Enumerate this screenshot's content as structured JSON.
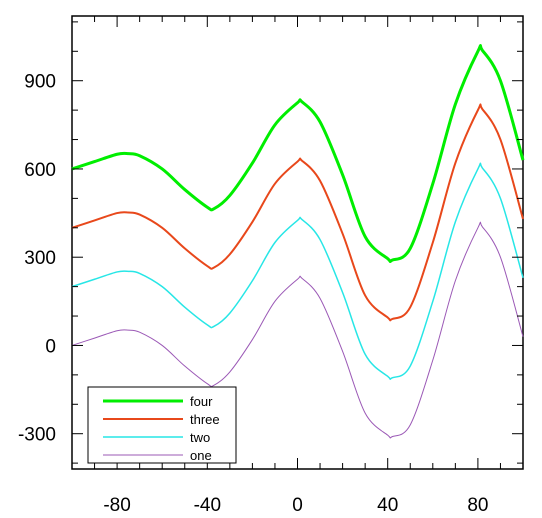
{
  "chart_data": {
    "type": "line",
    "title": "",
    "xlabel": "",
    "ylabel": "",
    "xlim": [
      -100,
      100
    ],
    "ylim": [
      -420,
      1120
    ],
    "xticks": [
      -80,
      -40,
      0,
      40,
      80
    ],
    "xtick_labels": [
      "-80",
      "-40",
      "0",
      "40",
      "80"
    ],
    "yticks": [
      -300,
      0,
      300,
      600,
      900
    ],
    "ytick_labels": [
      "-300",
      "0",
      "300",
      "600",
      "900"
    ],
    "x": [
      -100,
      -90,
      -80,
      -75,
      -70,
      -60,
      -50,
      -40,
      -37,
      -30,
      -20,
      -10,
      0,
      2,
      10,
      20,
      30,
      40,
      42,
      50,
      60,
      70,
      80,
      82,
      90,
      100
    ],
    "series": [
      {
        "name": "one",
        "color": "#9b59b6",
        "width": 1,
        "values": [
          0,
          25,
          50,
          52,
          45,
          0,
          -70,
          -130,
          -135,
          -90,
          20,
          150,
          225,
          228,
          160,
          -20,
          -230,
          -305,
          -310,
          -270,
          -50,
          220,
          400,
          403,
          300,
          30
        ]
      },
      {
        "name": "two",
        "color": "#27e6e6",
        "width": 1.5,
        "values": [
          200,
          225,
          250,
          252,
          245,
          200,
          130,
          70,
          65,
          110,
          220,
          350,
          425,
          428,
          360,
          180,
          -30,
          -105,
          -110,
          -70,
          150,
          420,
          600,
          603,
          500,
          230
        ]
      },
      {
        "name": "three",
        "color": "#e8481b",
        "width": 2,
        "values": [
          400,
          425,
          450,
          452,
          445,
          400,
          330,
          270,
          265,
          310,
          420,
          550,
          625,
          628,
          560,
          380,
          170,
          95,
          90,
          130,
          350,
          620,
          800,
          803,
          700,
          430
        ]
      },
      {
        "name": "four",
        "color": "#00ee00",
        "width": 3,
        "values": [
          600,
          625,
          650,
          652,
          645,
          600,
          530,
          470,
          465,
          510,
          620,
          750,
          825,
          828,
          760,
          580,
          370,
          295,
          290,
          330,
          550,
          820,
          1000,
          1003,
          900,
          630
        ]
      }
    ],
    "legend": {
      "placement": "bottom-left",
      "order": [
        "four",
        "three",
        "two",
        "one"
      ]
    },
    "grid": false,
    "minor_ticks": true
  }
}
